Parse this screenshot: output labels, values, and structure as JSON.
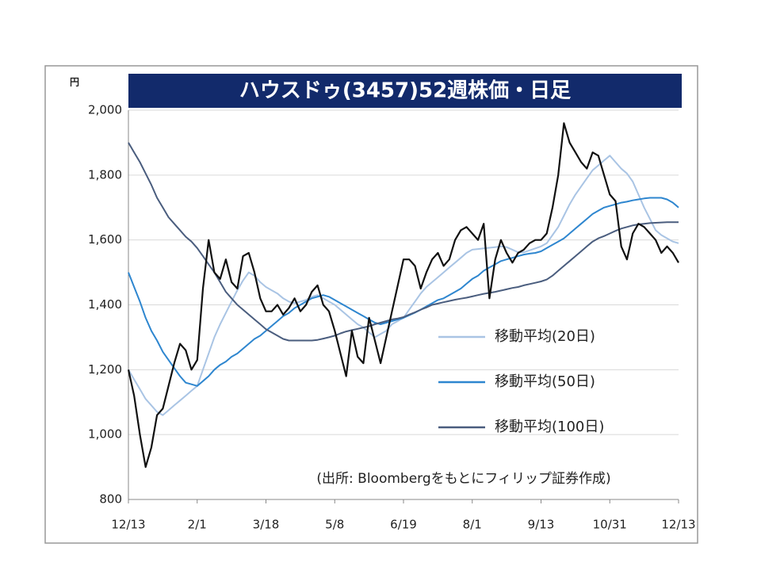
{
  "chart_data": {
    "type": "line",
    "title": "ハウスドゥ(3457)52週株価・日足",
    "y_unit": "円",
    "source": "(出所: Bloombergをもとにフィリップ証券作成)",
    "categories": [
      "12/13",
      null,
      null,
      null,
      null,
      null,
      null,
      null,
      null,
      null,
      null,
      null,
      "2/1",
      null,
      null,
      null,
      null,
      null,
      null,
      null,
      null,
      null,
      null,
      null,
      "3/18",
      null,
      null,
      null,
      null,
      null,
      null,
      null,
      null,
      null,
      null,
      null,
      "5/8",
      null,
      null,
      null,
      null,
      null,
      null,
      null,
      null,
      null,
      null,
      null,
      "6/19",
      null,
      null,
      null,
      null,
      null,
      null,
      null,
      null,
      null,
      null,
      null,
      "8/1",
      null,
      null,
      null,
      null,
      null,
      null,
      null,
      null,
      null,
      null,
      null,
      "9/13",
      null,
      null,
      null,
      null,
      null,
      null,
      null,
      null,
      null,
      null,
      null,
      "10/31",
      null,
      null,
      null,
      null,
      null,
      null,
      null,
      null,
      null,
      null,
      null,
      "12/13"
    ],
    "series": [
      {
        "color": "#111111",
        "values": [
          1200,
          1120,
          1000,
          900,
          960,
          1060,
          1080,
          1150,
          1220,
          1280,
          1260,
          1200,
          1230,
          1450,
          1600,
          1500,
          1480,
          1540,
          1470,
          1450,
          1550,
          1560,
          1500,
          1420,
          1380,
          1380,
          1400,
          1370,
          1390,
          1420,
          1380,
          1400,
          1440,
          1460,
          1400,
          1380,
          1320,
          1250,
          1180,
          1320,
          1240,
          1220,
          1360,
          1290,
          1220,
          1300,
          1380,
          1460,
          1540,
          1540,
          1520,
          1450,
          1500,
          1540,
          1560,
          1520,
          1540,
          1600,
          1630,
          1640,
          1620,
          1600,
          1650,
          1420,
          1540,
          1600,
          1560,
          1530,
          1560,
          1570,
          1590,
          1600,
          1600,
          1620,
          1700,
          1800,
          1960,
          1900,
          1870,
          1840,
          1820,
          1870,
          1860,
          1800,
          1740,
          1720,
          1580,
          1540,
          1620,
          1650,
          1640,
          1620,
          1600,
          1560,
          1580,
          1560,
          1530
        ]
      },
      {
        "name": "移動平均(20日)",
        "color": "#a9c4e4",
        "values": [
          1200,
          1170,
          1140,
          1110,
          1090,
          1070,
          1060,
          1075,
          1090,
          1105,
          1120,
          1135,
          1150,
          1200,
          1250,
          1300,
          1340,
          1375,
          1410,
          1445,
          1475,
          1500,
          1490,
          1470,
          1455,
          1445,
          1435,
          1420,
          1410,
          1405,
          1410,
          1415,
          1425,
          1430,
          1420,
          1410,
          1400,
          1385,
          1370,
          1355,
          1340,
          1330,
          1315,
          1300,
          1310,
          1320,
          1340,
          1350,
          1360,
          1385,
          1410,
          1435,
          1455,
          1470,
          1485,
          1500,
          1515,
          1530,
          1545,
          1560,
          1570,
          1572,
          1574,
          1576,
          1578,
          1580,
          1578,
          1570,
          1562,
          1562,
          1568,
          1574,
          1580,
          1590,
          1615,
          1640,
          1675,
          1710,
          1740,
          1765,
          1790,
          1815,
          1830,
          1845,
          1860,
          1840,
          1820,
          1805,
          1780,
          1740,
          1700,
          1665,
          1630,
          1615,
          1605,
          1595,
          1590
        ]
      },
      {
        "name": "移動平均(50日)",
        "color": "#2e86cf",
        "values": [
          1500,
          1455,
          1410,
          1360,
          1320,
          1290,
          1255,
          1230,
          1205,
          1180,
          1160,
          1155,
          1150,
          1165,
          1180,
          1200,
          1215,
          1225,
          1240,
          1250,
          1265,
          1280,
          1295,
          1305,
          1320,
          1335,
          1350,
          1365,
          1375,
          1390,
          1400,
          1410,
          1420,
          1425,
          1430,
          1425,
          1415,
          1405,
          1395,
          1385,
          1375,
          1365,
          1355,
          1345,
          1340,
          1345,
          1350,
          1355,
          1360,
          1368,
          1376,
          1385,
          1395,
          1405,
          1415,
          1420,
          1430,
          1440,
          1450,
          1465,
          1480,
          1490,
          1505,
          1515,
          1525,
          1535,
          1540,
          1545,
          1550,
          1555,
          1558,
          1560,
          1565,
          1575,
          1585,
          1595,
          1605,
          1620,
          1635,
          1650,
          1665,
          1680,
          1690,
          1700,
          1705,
          1710,
          1715,
          1718,
          1722,
          1725,
          1728,
          1730,
          1730,
          1730,
          1725,
          1715,
          1700
        ]
      },
      {
        "name": "移動平均(100日)",
        "color": "#4a5d7e",
        "values": [
          1900,
          1870,
          1840,
          1805,
          1770,
          1730,
          1700,
          1670,
          1650,
          1630,
          1610,
          1595,
          1575,
          1550,
          1525,
          1500,
          1470,
          1440,
          1420,
          1400,
          1385,
          1370,
          1355,
          1340,
          1325,
          1315,
          1305,
          1295,
          1290,
          1290,
          1290,
          1290,
          1290,
          1292,
          1296,
          1300,
          1305,
          1312,
          1318,
          1322,
          1326,
          1330,
          1334,
          1340,
          1345,
          1350,
          1355,
          1358,
          1362,
          1370,
          1377,
          1385,
          1392,
          1400,
          1404,
          1408,
          1412,
          1416,
          1419,
          1422,
          1426,
          1430,
          1434,
          1437,
          1440,
          1444,
          1448,
          1452,
          1455,
          1460,
          1464,
          1468,
          1472,
          1478,
          1490,
          1505,
          1520,
          1535,
          1550,
          1565,
          1580,
          1595,
          1605,
          1612,
          1620,
          1628,
          1635,
          1640,
          1645,
          1648,
          1650,
          1652,
          1653,
          1654,
          1655,
          1655,
          1655
        ]
      }
    ],
    "ylim": [
      800,
      2000
    ],
    "yticks": [
      800,
      {
        "value": 1000,
        "label": "1,000"
      },
      {
        "value": 1200,
        "label": "1,200"
      },
      {
        "value": 1400,
        "label": "1,400"
      },
      {
        "value": 1600,
        "label": "1,600"
      },
      {
        "value": 1800,
        "label": "1,800"
      },
      {
        "value": 2000,
        "label": "2,000"
      }
    ],
    "grid": true
  }
}
